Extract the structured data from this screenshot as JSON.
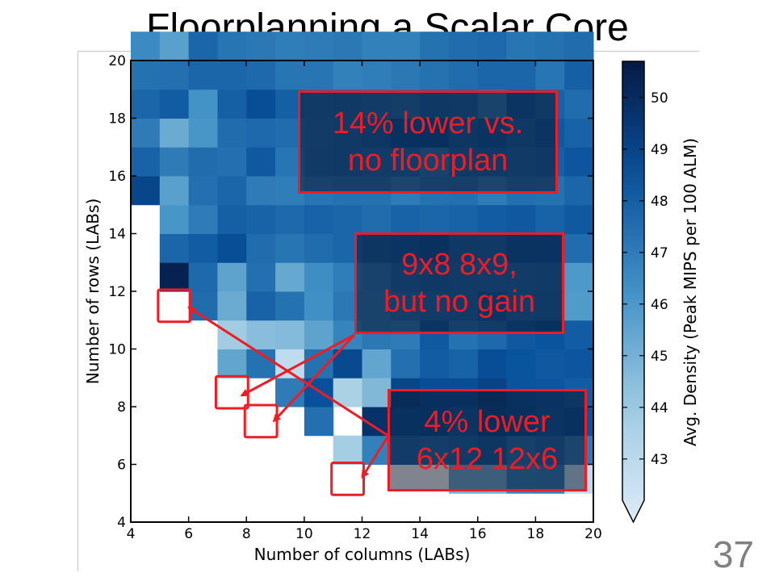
{
  "slide": {
    "title": "Floorplanning a Scalar Core",
    "page_number": "37"
  },
  "callouts": [
    {
      "line1": "14% lower vs.",
      "line2": "no floorplan"
    },
    {
      "line1": "9x8 8x9,",
      "line2": "but no gain"
    },
    {
      "line1": "4% lower",
      "line2": "6x12 12x6"
    }
  ],
  "colors": {
    "accent_red": "#ee1c25",
    "cmap_low": "#ddeefb",
    "cmap_high": "#061a44"
  },
  "chart_data": {
    "type": "heatmap",
    "xlabel": "Number of columns (LABs)",
    "ylabel": "Number of rows (LABs)",
    "colorbar_label": "Avg. Density (Peak MIPS per 100 ALM)",
    "x_ticks": [
      4,
      6,
      8,
      10,
      12,
      14,
      16,
      18,
      20
    ],
    "y_ticks": [
      4,
      6,
      8,
      10,
      12,
      14,
      16,
      18,
      20
    ],
    "colorbar_ticks": [
      43,
      44,
      45,
      46,
      47,
      48,
      49,
      50
    ],
    "xlim": [
      4,
      20
    ],
    "ylim": [
      4,
      20
    ],
    "clim": [
      42.2,
      50.7
    ],
    "x_start": 4,
    "y_start": 4,
    "rows": [
      [
        null,
        null,
        null,
        null,
        null,
        null,
        null,
        null,
        null,
        null,
        null,
        null,
        null,
        null,
        null,
        null
      ],
      [
        null,
        null,
        null,
        null,
        null,
        null,
        null,
        null,
        null,
        null,
        null,
        45.3,
        45.3,
        46.9,
        47.0,
        43.2
      ],
      [
        null,
        null,
        null,
        null,
        null,
        null,
        null,
        44.1,
        47.0,
        47.8,
        47.7,
        47.9,
        48.2,
        47.5,
        47.8,
        47.2
      ],
      [
        null,
        null,
        null,
        null,
        null,
        null,
        47.6,
        null,
        49.8,
        48.5,
        48.6,
        48.3,
        48.9,
        48.6,
        48.3,
        48.5
      ],
      [
        null,
        null,
        null,
        null,
        null,
        47.2,
        48.6,
        43.9,
        45.0,
        49.0,
        48.7,
        48.7,
        49.1,
        48.5,
        48.4,
        48.2
      ],
      [
        null,
        null,
        null,
        45.7,
        47.5,
        43.2,
        47.5,
        48.9,
        45.7,
        47.6,
        48.2,
        48.0,
        48.7,
        48.5,
        48.3,
        48.4
      ],
      [
        null,
        null,
        null,
        44.2,
        44.8,
        44.9,
        45.8,
        46.9,
        47.3,
        47.2,
        48.3,
        47.5,
        47.8,
        48.3,
        48.5,
        48.2
      ],
      [
        null,
        null,
        47.7,
        45.5,
        48.0,
        47.5,
        46.5,
        47.3,
        47.3,
        47.7,
        47.8,
        47.9,
        48.3,
        47.9,
        48.0,
        46.1
      ],
      [
        null,
        50.4,
        47.8,
        45.8,
        47.6,
        45.6,
        46.6,
        47.1,
        47.4,
        47.9,
        48.1,
        47.9,
        47.8,
        47.8,
        47.9,
        46.2
      ],
      [
        null,
        47.9,
        48.2,
        48.7,
        47.7,
        47.4,
        47.7,
        47.9,
        48.2,
        48.3,
        48.5,
        48.1,
        48.0,
        48.4,
        48.4,
        47.7
      ],
      [
        null,
        46.3,
        47.2,
        48.1,
        48.0,
        47.8,
        48.0,
        47.9,
        47.7,
        48.0,
        47.9,
        48.0,
        48.2,
        48.3,
        48.0,
        48.3
      ],
      [
        49.0,
        45.9,
        47.6,
        47.9,
        47.2,
        47.1,
        47.4,
        47.5,
        47.5,
        47.2,
        47.5,
        47.6,
        47.2,
        47.6,
        47.5,
        47.9
      ],
      [
        48.0,
        47.2,
        47.7,
        47.6,
        48.3,
        47.4,
        47.9,
        48.0,
        47.8,
        47.8,
        47.4,
        48.0,
        48.1,
        47.9,
        48.1,
        48.4
      ],
      [
        47.2,
        45.5,
        46.3,
        47.7,
        47.8,
        47.7,
        47.8,
        48.0,
        48.2,
        48.5,
        48.6,
        48.2,
        48.4,
        48.1,
        48.3,
        48.0
      ],
      [
        47.9,
        48.2,
        46.4,
        48.1,
        48.7,
        48.1,
        47.9,
        48.0,
        47.8,
        47.7,
        48.1,
        48.0,
        47.3,
        48.3,
        48.0,
        47.7
      ],
      [
        47.5,
        47.6,
        47.9,
        47.9,
        47.8,
        47.4,
        47.4,
        47.0,
        47.1,
        47.3,
        47.5,
        47.7,
        47.9,
        47.9,
        47.4,
        48.1
      ],
      [
        46.7,
        45.9,
        47.9,
        47.4,
        47.3,
        47.1,
        47.2,
        47.3,
        47.0,
        47.0,
        47.5,
        47.7,
        47.8,
        47.4,
        47.5,
        47.7
      ]
    ]
  }
}
